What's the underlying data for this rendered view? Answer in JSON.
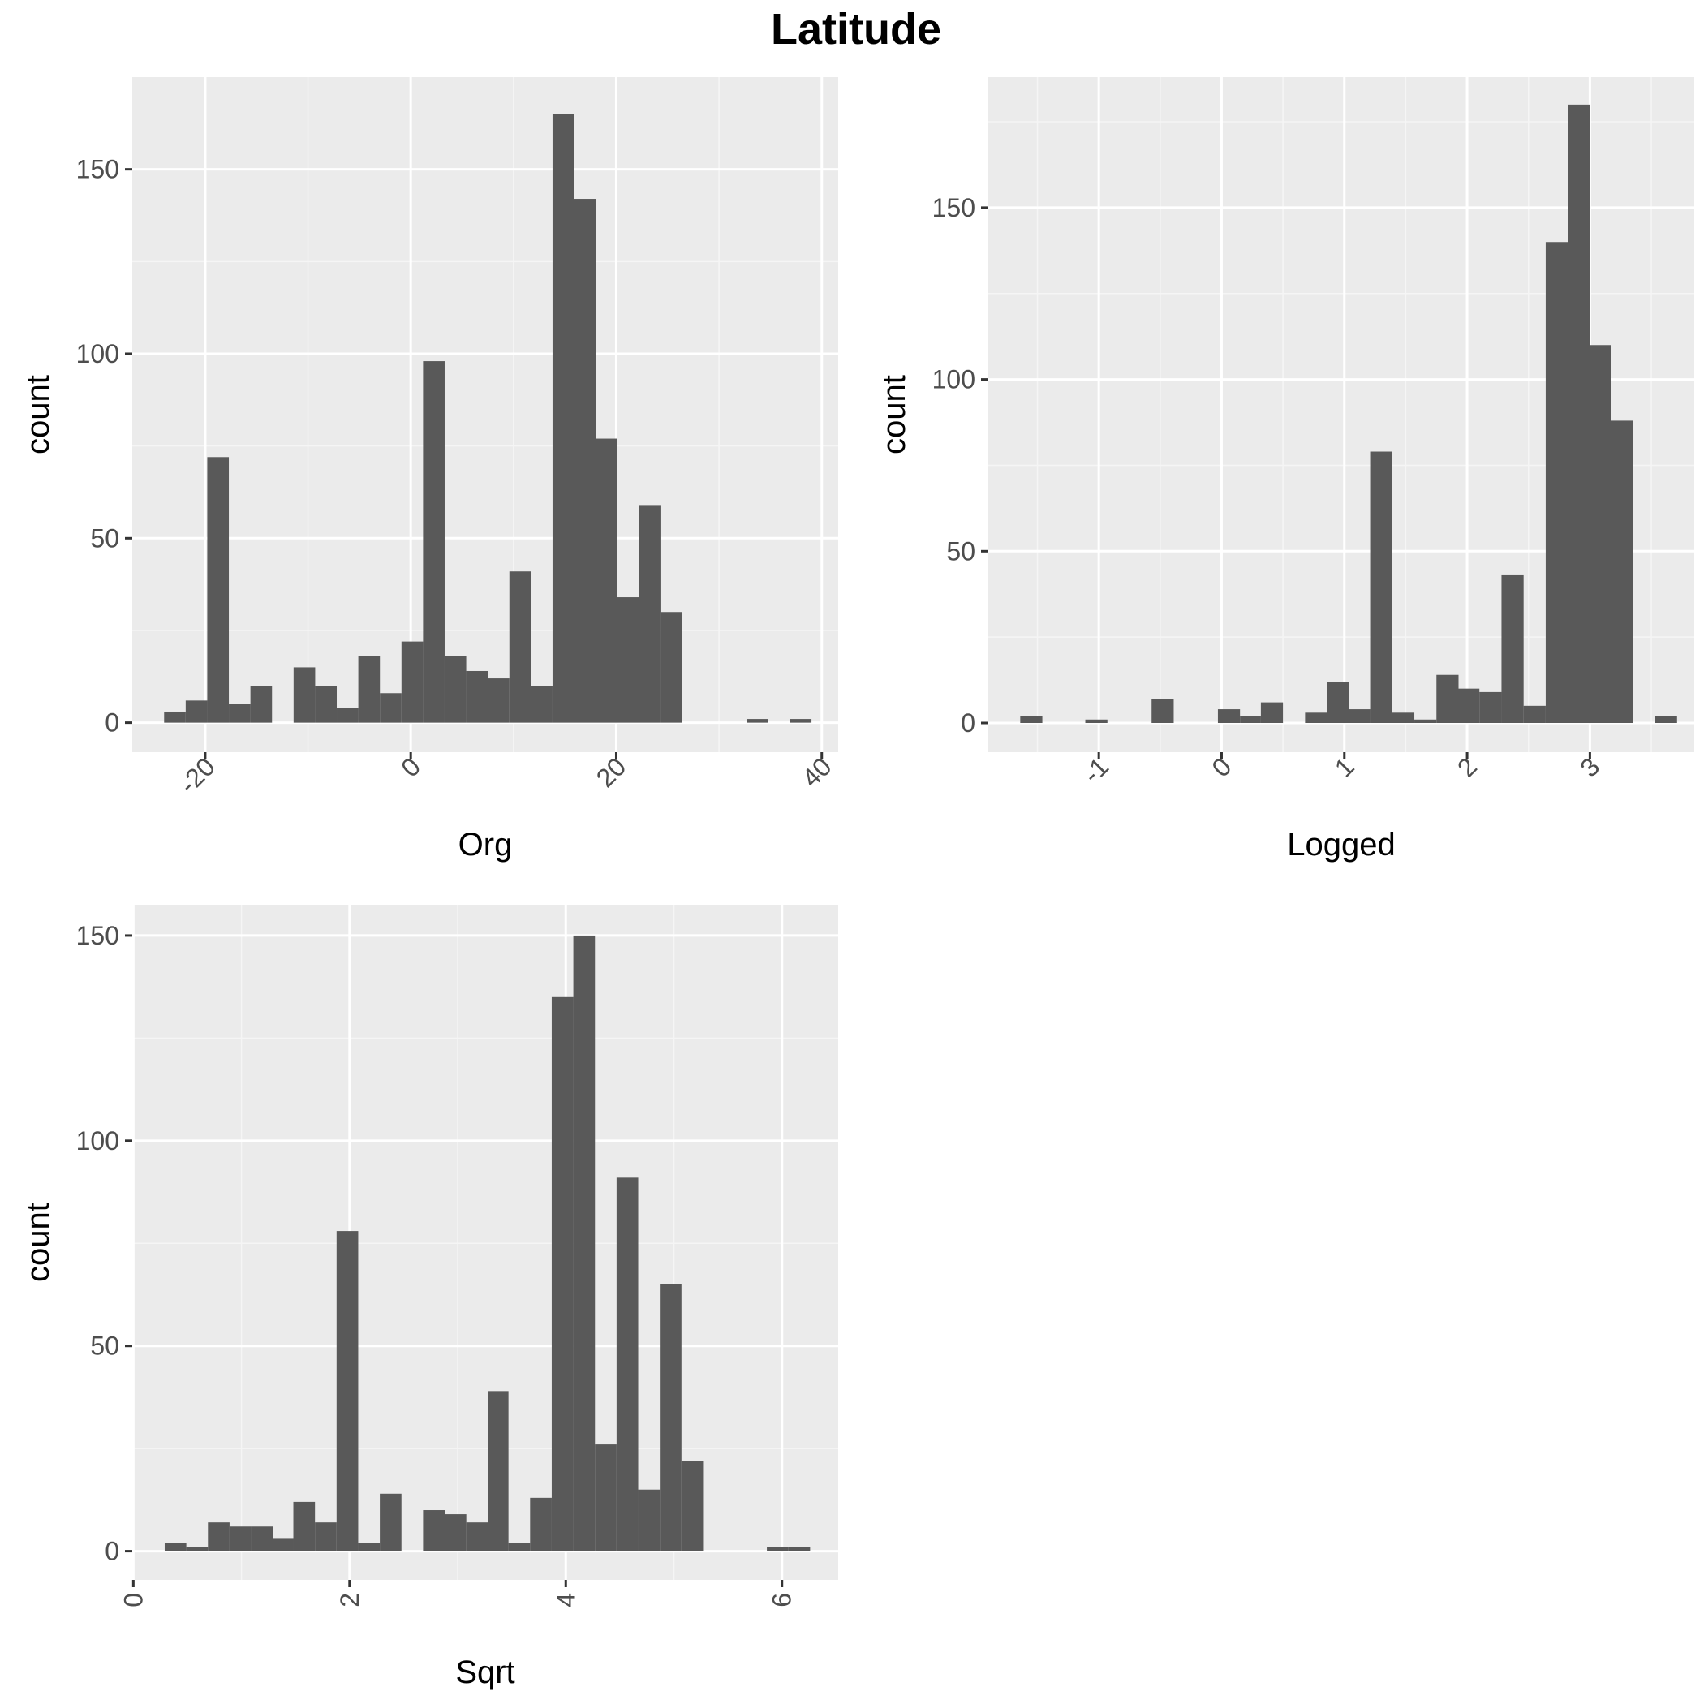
{
  "title": "Latitude",
  "colors": {
    "panel_background": "#ebebeb",
    "grid_major": "#ffffff",
    "grid_minor": "#f5f5f5",
    "bar_fill": "#595959",
    "tick_text": "#4d4d4d",
    "title_text": "#000000"
  },
  "chart_data": [
    {
      "type": "bar",
      "subtype": "histogram",
      "xlabel": "Org",
      "ylabel": "count",
      "xlim": [
        -27.1,
        41.6
      ],
      "ylim": [
        -8,
        175
      ],
      "x_ticks": [
        -20,
        0,
        20,
        40
      ],
      "x_tick_labels": [
        "-20",
        "0",
        "20",
        "40"
      ],
      "y_ticks": [
        0,
        50,
        100,
        150
      ],
      "y_tick_labels": [
        "0",
        "50",
        "100",
        "150"
      ],
      "x_tick_angle": 45,
      "grid": true,
      "bins": [
        {
          "x0": -24,
          "x1": -21.9,
          "count": 3
        },
        {
          "x0": -21.9,
          "x1": -19.8,
          "count": 6
        },
        {
          "x0": -19.8,
          "x1": -17.7,
          "count": 72
        },
        {
          "x0": -17.7,
          "x1": -15.6,
          "count": 5
        },
        {
          "x0": -15.6,
          "x1": -13.5,
          "count": 10
        },
        {
          "x0": -11.4,
          "x1": -9.3,
          "count": 15
        },
        {
          "x0": -9.3,
          "x1": -7.2,
          "count": 10
        },
        {
          "x0": -7.2,
          "x1": -5.1,
          "count": 4
        },
        {
          "x0": -5.1,
          "x1": -3,
          "count": 18
        },
        {
          "x0": -3,
          "x1": -0.9,
          "count": 8
        },
        {
          "x0": -0.9,
          "x1": 1.2,
          "count": 22
        },
        {
          "x0": 1.2,
          "x1": 3.3,
          "count": 98
        },
        {
          "x0": 3.3,
          "x1": 5.4,
          "count": 18
        },
        {
          "x0": 5.4,
          "x1": 7.5,
          "count": 14
        },
        {
          "x0": 7.5,
          "x1": 9.6,
          "count": 12
        },
        {
          "x0": 9.6,
          "x1": 11.7,
          "count": 41
        },
        {
          "x0": 11.7,
          "x1": 13.8,
          "count": 10
        },
        {
          "x0": 13.8,
          "x1": 15.9,
          "count": 165
        },
        {
          "x0": 15.9,
          "x1": 18,
          "count": 142
        },
        {
          "x0": 18,
          "x1": 20.1,
          "count": 77
        },
        {
          "x0": 20.1,
          "x1": 22.2,
          "count": 34
        },
        {
          "x0": 22.2,
          "x1": 24.3,
          "count": 59
        },
        {
          "x0": 24.3,
          "x1": 26.4,
          "count": 30
        },
        {
          "x0": 32.7,
          "x1": 34.8,
          "count": 1
        },
        {
          "x0": 36.9,
          "x1": 39,
          "count": 1
        }
      ]
    },
    {
      "type": "bar",
      "subtype": "histogram",
      "xlabel": "Logged",
      "ylabel": "count",
      "xlim": [
        -1.9,
        3.85
      ],
      "ylim": [
        -8.5,
        188
      ],
      "x_ticks": [
        -1,
        0,
        1,
        2,
        3
      ],
      "x_tick_labels": [
        "-1",
        "0",
        "1",
        "2",
        "3"
      ],
      "y_ticks": [
        0,
        50,
        100,
        150
      ],
      "y_tick_labels": [
        "0",
        "50",
        "100",
        "150"
      ],
      "x_tick_angle": 45,
      "grid": true,
      "bins": [
        {
          "x0": -1.64,
          "x1": -1.46,
          "count": 2
        },
        {
          "x0": -1.11,
          "x1": -0.93,
          "count": 1
        },
        {
          "x0": -0.57,
          "x1": -0.39,
          "count": 7
        },
        {
          "x0": -0.03,
          "x1": 0.15,
          "count": 4
        },
        {
          "x0": 0.15,
          "x1": 0.32,
          "count": 2
        },
        {
          "x0": 0.32,
          "x1": 0.5,
          "count": 6
        },
        {
          "x0": 0.68,
          "x1": 0.86,
          "count": 3
        },
        {
          "x0": 0.86,
          "x1": 1.04,
          "count": 12
        },
        {
          "x0": 1.04,
          "x1": 1.21,
          "count": 4
        },
        {
          "x0": 1.21,
          "x1": 1.39,
          "count": 79
        },
        {
          "x0": 1.39,
          "x1": 1.57,
          "count": 3
        },
        {
          "x0": 1.57,
          "x1": 1.75,
          "count": 1
        },
        {
          "x0": 1.75,
          "x1": 1.93,
          "count": 14
        },
        {
          "x0": 1.93,
          "x1": 2.1,
          "count": 10
        },
        {
          "x0": 2.1,
          "x1": 2.28,
          "count": 9
        },
        {
          "x0": 2.28,
          "x1": 2.46,
          "count": 43
        },
        {
          "x0": 2.46,
          "x1": 2.64,
          "count": 5
        },
        {
          "x0": 2.64,
          "x1": 2.82,
          "count": 140
        },
        {
          "x0": 2.82,
          "x1": 3,
          "count": 180
        },
        {
          "x0": 3,
          "x1": 3.17,
          "count": 110
        },
        {
          "x0": 3.17,
          "x1": 3.35,
          "count": 88
        },
        {
          "x0": 3.53,
          "x1": 3.71,
          "count": 2
        }
      ]
    },
    {
      "type": "bar",
      "subtype": "histogram",
      "xlabel": "Sqrt",
      "ylabel": "count",
      "xlim": [
        -0.01,
        6.52
      ],
      "ylim": [
        -7,
        157.5
      ],
      "x_ticks": [
        0,
        2,
        4,
        6
      ],
      "x_tick_labels": [
        "0",
        "2",
        "4",
        "6"
      ],
      "y_ticks": [
        0,
        50,
        100,
        150
      ],
      "y_tick_labels": [
        "0",
        "50",
        "100",
        "150"
      ],
      "x_tick_angle": 90,
      "grid": true,
      "bins": [
        {
          "x0": 0.29,
          "x1": 0.49,
          "count": 2
        },
        {
          "x0": 0.49,
          "x1": 0.69,
          "count": 1
        },
        {
          "x0": 0.69,
          "x1": 0.89,
          "count": 7
        },
        {
          "x0": 0.89,
          "x1": 1.09,
          "count": 6
        },
        {
          "x0": 1.09,
          "x1": 1.29,
          "count": 6
        },
        {
          "x0": 1.29,
          "x1": 1.48,
          "count": 3
        },
        {
          "x0": 1.48,
          "x1": 1.68,
          "count": 12
        },
        {
          "x0": 1.68,
          "x1": 1.88,
          "count": 7
        },
        {
          "x0": 1.88,
          "x1": 2.08,
          "count": 78
        },
        {
          "x0": 2.08,
          "x1": 2.28,
          "count": 2
        },
        {
          "x0": 2.28,
          "x1": 2.48,
          "count": 14
        },
        {
          "x0": 2.68,
          "x1": 2.88,
          "count": 10
        },
        {
          "x0": 2.88,
          "x1": 3.08,
          "count": 9
        },
        {
          "x0": 3.08,
          "x1": 3.28,
          "count": 7
        },
        {
          "x0": 3.28,
          "x1": 3.47,
          "count": 39
        },
        {
          "x0": 3.47,
          "x1": 3.67,
          "count": 2
        },
        {
          "x0": 3.67,
          "x1": 3.87,
          "count": 13
        },
        {
          "x0": 3.87,
          "x1": 4.07,
          "count": 135
        },
        {
          "x0": 4.07,
          "x1": 4.27,
          "count": 150
        },
        {
          "x0": 4.27,
          "x1": 4.47,
          "count": 26
        },
        {
          "x0": 4.47,
          "x1": 4.67,
          "count": 91
        },
        {
          "x0": 4.67,
          "x1": 4.87,
          "count": 15
        },
        {
          "x0": 4.87,
          "x1": 5.07,
          "count": 65
        },
        {
          "x0": 5.07,
          "x1": 5.27,
          "count": 22
        },
        {
          "x0": 5.86,
          "x1": 6.06,
          "count": 1
        },
        {
          "x0": 6.06,
          "x1": 6.26,
          "count": 1
        }
      ]
    }
  ]
}
